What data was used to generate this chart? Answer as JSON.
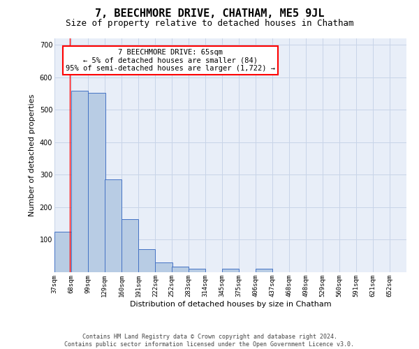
{
  "title": "7, BEECHMORE DRIVE, CHATHAM, ME5 9JL",
  "subtitle": "Size of property relative to detached houses in Chatham",
  "xlabel": "Distribution of detached houses by size in Chatham",
  "ylabel": "Number of detached properties",
  "footer_line1": "Contains HM Land Registry data © Crown copyright and database right 2024.",
  "footer_line2": "Contains public sector information licensed under the Open Government Licence v3.0.",
  "annotation_line1": "7 BEECHMORE DRIVE: 65sqm",
  "annotation_line2": "← 5% of detached houses are smaller (84)",
  "annotation_line3": "95% of semi-detached houses are larger (1,722) →",
  "bar_color": "#b8cce4",
  "bar_edge_color": "#4472c4",
  "red_line_x": 65,
  "categories": [
    "37sqm",
    "68sqm",
    "99sqm",
    "129sqm",
    "160sqm",
    "191sqm",
    "222sqm",
    "252sqm",
    "283sqm",
    "314sqm",
    "345sqm",
    "375sqm",
    "406sqm",
    "437sqm",
    "468sqm",
    "498sqm",
    "529sqm",
    "560sqm",
    "591sqm",
    "621sqm",
    "652sqm"
  ],
  "bin_edges": [
    37,
    68,
    99,
    129,
    160,
    191,
    222,
    252,
    283,
    314,
    345,
    375,
    406,
    437,
    468,
    498,
    529,
    560,
    591,
    621,
    652
  ],
  "bin_width": 31,
  "values": [
    125,
    558,
    553,
    286,
    163,
    70,
    30,
    18,
    10,
    0,
    10,
    0,
    10,
    0,
    0,
    0,
    0,
    0,
    0,
    0,
    0
  ],
  "ylim": [
    0,
    720
  ],
  "yticks": [
    100,
    200,
    300,
    400,
    500,
    600,
    700
  ],
  "grid_color": "#c8d4e8",
  "background_color": "#e8eef8",
  "title_fontsize": 11,
  "subtitle_fontsize": 9,
  "annotation_fontsize": 7.5,
  "footer_fontsize": 6,
  "axis_fontsize": 8,
  "tick_fontsize": 6.5
}
